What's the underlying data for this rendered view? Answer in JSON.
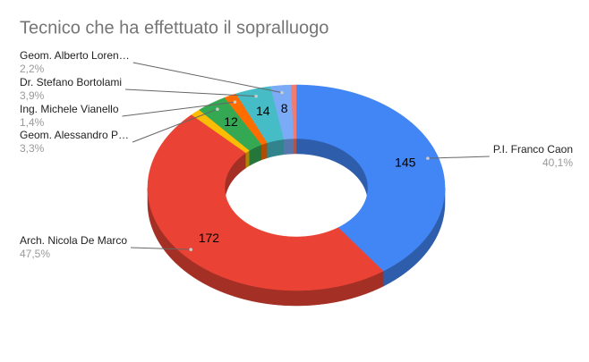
{
  "chart_data": {
    "type": "pie",
    "donut": true,
    "three_d": true,
    "title": "Tecnico che ha effettuato il sopralluogo",
    "categories": [
      "P.I. Franco Caon",
      "Arch. Nicola De Marco",
      null,
      "Geom. Alessandro P…",
      "Ing. Michele Vianello",
      "Dr. Stefano Bortolami",
      "Geom. Alberto Loren…",
      null
    ],
    "values": [
      145,
      172,
      4,
      12,
      5,
      14,
      8,
      2
    ],
    "percent_labels": [
      "40,1%",
      "47,5%",
      null,
      "3,3%",
      "1,4%",
      "3,9%",
      "2,2%",
      null
    ],
    "colors": [
      "#4285f4",
      "#ea4335",
      "#fbbc04",
      "#34a853",
      "#ff6d01",
      "#46bdc6",
      "#7baaf7",
      "#f07b72"
    ]
  }
}
